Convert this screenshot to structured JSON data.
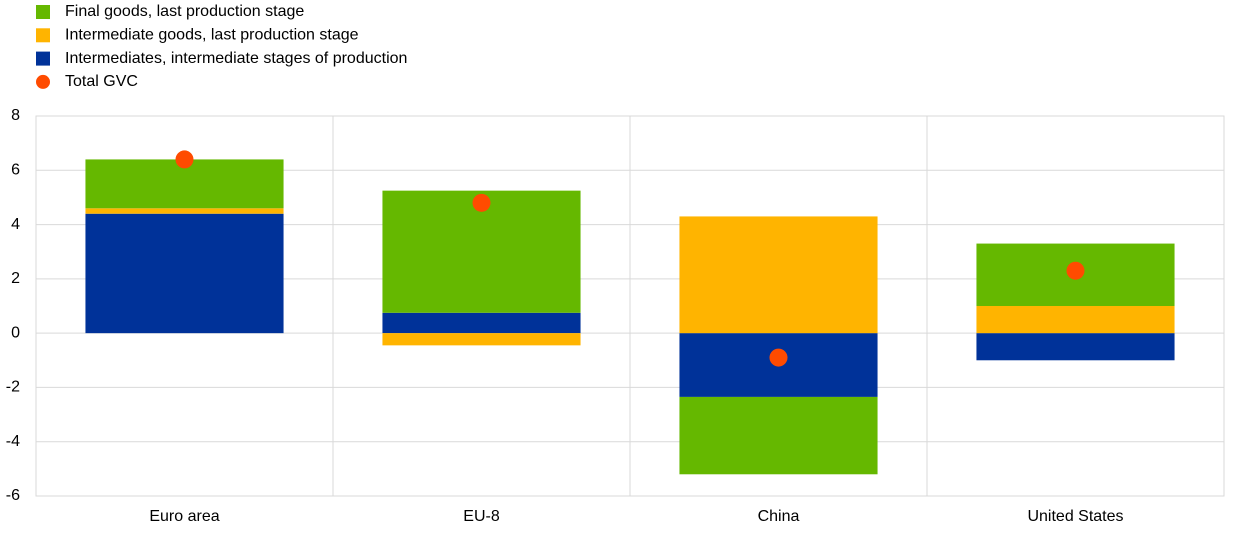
{
  "chart_data": {
    "type": "stacked_bar",
    "categories": [
      "Euro area",
      "EU-8",
      "China",
      "United States"
    ],
    "series": [
      {
        "name": "Final goods, last production stage",
        "color": "#65b800",
        "values": [
          1.8,
          4.5,
          -2.85,
          2.3
        ]
      },
      {
        "name": "Intermediate goods, last production stage",
        "color": "#ffb400",
        "values": [
          0.2,
          -0.45,
          4.3,
          1.0
        ]
      },
      {
        "name": "Intermediates, intermediate stages of production",
        "color": "#003299",
        "values": [
          4.4,
          0.75,
          -2.35,
          -1.0
        ]
      },
      {
        "name": "Total GVC",
        "color": "#ff4b00",
        "type": "scatter",
        "values": [
          6.4,
          4.8,
          -0.9,
          2.3
        ]
      }
    ],
    "stack_order": [
      2,
      1,
      0
    ],
    "ylim": [
      -6,
      8
    ],
    "yticks": [
      -6,
      -4,
      -2,
      0,
      2,
      4,
      6,
      8
    ],
    "grid": true
  }
}
